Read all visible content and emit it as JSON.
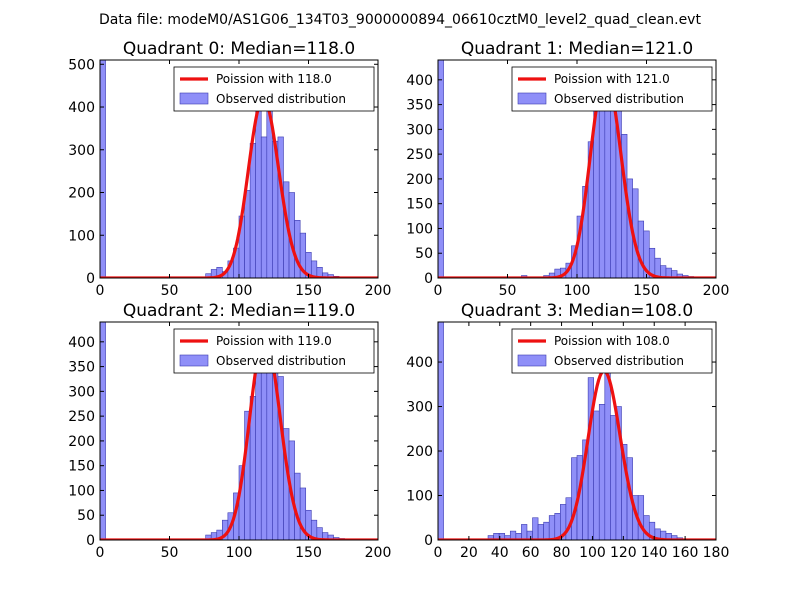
{
  "figure": {
    "suptitle": "Data file: modeM0/AS1G06_134T03_9000000894_06610cztM0_level2_quad_clean.evt"
  },
  "colors": {
    "histogram_fill": "#7b7bf7",
    "histogram_edge": "#3b3bb0",
    "poisson_line": "#ee1111",
    "axes": "#000000"
  },
  "chart_data": [
    {
      "type": "bar",
      "title": "Quadrant 0: Median=118.0",
      "xlim": [
        0,
        200
      ],
      "ylim": [
        0,
        510
      ],
      "xticks": [
        0,
        50,
        100,
        150,
        200
      ],
      "yticks": [
        0,
        100,
        200,
        300,
        400,
        500
      ],
      "median": 118.0,
      "legend": {
        "position": "top-right",
        "entries": [
          "Poission with 118.0",
          "Observed distribution"
        ]
      },
      "bin_width": 4,
      "bins": [
        {
          "x": 0,
          "y": 510
        },
        {
          "x": 76,
          "y": 10
        },
        {
          "x": 80,
          "y": 20
        },
        {
          "x": 84,
          "y": 25
        },
        {
          "x": 88,
          "y": 15
        },
        {
          "x": 92,
          "y": 40
        },
        {
          "x": 96,
          "y": 70
        },
        {
          "x": 100,
          "y": 145
        },
        {
          "x": 104,
          "y": 205
        },
        {
          "x": 108,
          "y": 315
        },
        {
          "x": 112,
          "y": 420
        },
        {
          "x": 116,
          "y": 330
        },
        {
          "x": 120,
          "y": 420
        },
        {
          "x": 124,
          "y": 320
        },
        {
          "x": 128,
          "y": 330
        },
        {
          "x": 132,
          "y": 225
        },
        {
          "x": 136,
          "y": 200
        },
        {
          "x": 140,
          "y": 135
        },
        {
          "x": 144,
          "y": 105
        },
        {
          "x": 148,
          "y": 60
        },
        {
          "x": 152,
          "y": 40
        },
        {
          "x": 156,
          "y": 25
        },
        {
          "x": 160,
          "y": 12
        },
        {
          "x": 164,
          "y": 8
        },
        {
          "x": 168,
          "y": 4
        }
      ]
    },
    {
      "type": "bar",
      "title": "Quadrant 1: Median=121.0",
      "xlim": [
        0,
        200
      ],
      "ylim": [
        0,
        440
      ],
      "xticks": [
        0,
        50,
        100,
        150,
        200
      ],
      "yticks": [
        0,
        50,
        100,
        150,
        200,
        250,
        300,
        350,
        400
      ],
      "median": 121.0,
      "legend": {
        "position": "top-right",
        "entries": [
          "Poission with 121.0",
          "Observed distribution"
        ]
      },
      "bin_width": 4,
      "bins": [
        {
          "x": 0,
          "y": 440
        },
        {
          "x": 60,
          "y": 5
        },
        {
          "x": 76,
          "y": 5
        },
        {
          "x": 80,
          "y": 10
        },
        {
          "x": 84,
          "y": 18
        },
        {
          "x": 88,
          "y": 20
        },
        {
          "x": 92,
          "y": 30
        },
        {
          "x": 96,
          "y": 65
        },
        {
          "x": 100,
          "y": 125
        },
        {
          "x": 104,
          "y": 185
        },
        {
          "x": 108,
          "y": 275
        },
        {
          "x": 112,
          "y": 350
        },
        {
          "x": 116,
          "y": 340
        },
        {
          "x": 120,
          "y": 360
        },
        {
          "x": 124,
          "y": 410
        },
        {
          "x": 128,
          "y": 345
        },
        {
          "x": 132,
          "y": 290
        },
        {
          "x": 136,
          "y": 200
        },
        {
          "x": 140,
          "y": 180
        },
        {
          "x": 144,
          "y": 115
        },
        {
          "x": 148,
          "y": 95
        },
        {
          "x": 152,
          "y": 60
        },
        {
          "x": 156,
          "y": 40
        },
        {
          "x": 160,
          "y": 25
        },
        {
          "x": 164,
          "y": 20
        },
        {
          "x": 168,
          "y": 15
        },
        {
          "x": 172,
          "y": 8
        },
        {
          "x": 176,
          "y": 5
        },
        {
          "x": 180,
          "y": 3
        }
      ]
    },
    {
      "type": "bar",
      "title": "Quadrant 2: Median=119.0",
      "xlim": [
        0,
        200
      ],
      "ylim": [
        0,
        440
      ],
      "xticks": [
        0,
        50,
        100,
        150,
        200
      ],
      "yticks": [
        0,
        50,
        100,
        150,
        200,
        250,
        300,
        350,
        400
      ],
      "median": 119.0,
      "legend": {
        "position": "top-right",
        "entries": [
          "Poission with 119.0",
          "Observed distribution"
        ]
      },
      "bin_width": 4,
      "bins": [
        {
          "x": 0,
          "y": 440
        },
        {
          "x": 76,
          "y": 10
        },
        {
          "x": 80,
          "y": 15
        },
        {
          "x": 84,
          "y": 20
        },
        {
          "x": 88,
          "y": 40
        },
        {
          "x": 92,
          "y": 55
        },
        {
          "x": 96,
          "y": 95
        },
        {
          "x": 100,
          "y": 150
        },
        {
          "x": 104,
          "y": 260
        },
        {
          "x": 108,
          "y": 290
        },
        {
          "x": 112,
          "y": 410
        },
        {
          "x": 116,
          "y": 380
        },
        {
          "x": 120,
          "y": 350
        },
        {
          "x": 124,
          "y": 355
        },
        {
          "x": 128,
          "y": 330
        },
        {
          "x": 132,
          "y": 225
        },
        {
          "x": 136,
          "y": 200
        },
        {
          "x": 140,
          "y": 135
        },
        {
          "x": 144,
          "y": 105
        },
        {
          "x": 148,
          "y": 60
        },
        {
          "x": 152,
          "y": 40
        },
        {
          "x": 156,
          "y": 25
        },
        {
          "x": 160,
          "y": 15
        },
        {
          "x": 164,
          "y": 10
        },
        {
          "x": 168,
          "y": 5
        },
        {
          "x": 172,
          "y": 3
        }
      ]
    },
    {
      "type": "bar",
      "title": "Quadrant 3: Median=108.0",
      "xlim": [
        0,
        180
      ],
      "ylim": [
        0,
        490
      ],
      "xticks": [
        0,
        20,
        40,
        60,
        80,
        100,
        120,
        140,
        160,
        180
      ],
      "yticks": [
        0,
        100,
        200,
        300,
        400
      ],
      "median": 108.0,
      "legend": {
        "position": "top-right",
        "entries": [
          "Poission with 108.0",
          "Observed distribution"
        ]
      },
      "bin_width": 3.6,
      "bins": [
        {
          "x": 0,
          "y": 490
        },
        {
          "x": 32.4,
          "y": 10
        },
        {
          "x": 36,
          "y": 15
        },
        {
          "x": 39.6,
          "y": 15
        },
        {
          "x": 43.2,
          "y": 10
        },
        {
          "x": 46.8,
          "y": 20
        },
        {
          "x": 50.4,
          "y": 15
        },
        {
          "x": 54,
          "y": 35
        },
        {
          "x": 57.6,
          "y": 20
        },
        {
          "x": 61.2,
          "y": 50
        },
        {
          "x": 64.8,
          "y": 35
        },
        {
          "x": 68.4,
          "y": 40
        },
        {
          "x": 72,
          "y": 55
        },
        {
          "x": 75.6,
          "y": 60
        },
        {
          "x": 79.2,
          "y": 80
        },
        {
          "x": 82.8,
          "y": 95
        },
        {
          "x": 86.4,
          "y": 185
        },
        {
          "x": 90,
          "y": 190
        },
        {
          "x": 93.6,
          "y": 225
        },
        {
          "x": 97.2,
          "y": 365
        },
        {
          "x": 100.8,
          "y": 290
        },
        {
          "x": 104.4,
          "y": 305
        },
        {
          "x": 108,
          "y": 380
        },
        {
          "x": 111.6,
          "y": 280
        },
        {
          "x": 115.2,
          "y": 300
        },
        {
          "x": 118.8,
          "y": 215
        },
        {
          "x": 122.4,
          "y": 185
        },
        {
          "x": 126,
          "y": 100
        },
        {
          "x": 129.6,
          "y": 100
        },
        {
          "x": 133.2,
          "y": 55
        },
        {
          "x": 136.8,
          "y": 40
        },
        {
          "x": 140.4,
          "y": 25
        },
        {
          "x": 144,
          "y": 20
        },
        {
          "x": 147.6,
          "y": 15
        },
        {
          "x": 151.2,
          "y": 10
        },
        {
          "x": 154.8,
          "y": 5
        }
      ]
    }
  ]
}
